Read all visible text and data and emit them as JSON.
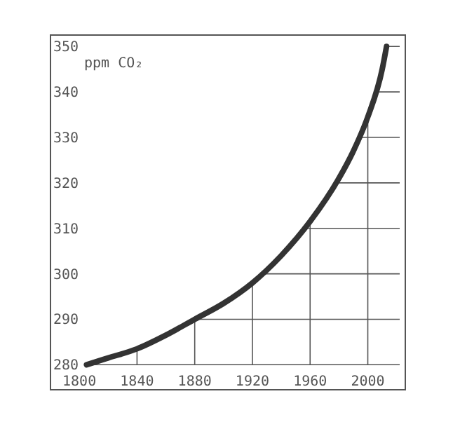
{
  "chart_data": {
    "type": "line",
    "ylabel": "ppm CO₂",
    "xlim": [
      1780,
      2026
    ],
    "ylim": [
      274.5,
      352.5
    ],
    "xticks": [
      1800,
      1840,
      1880,
      1920,
      1960,
      2000
    ],
    "yticks": [
      280,
      290,
      300,
      310,
      320,
      330,
      340,
      350
    ],
    "grid": true,
    "marker": "none",
    "line_style": "solid",
    "series": [
      {
        "color": "#333333",
        "x": [
          1805,
          1820,
          1840,
          1860,
          1880,
          1900,
          1920,
          1940,
          1960,
          1980,
          1990,
          2000,
          2010,
          2013
        ],
        "values": [
          280,
          281.5,
          283.5,
          286.5,
          290,
          293.5,
          298,
          304,
          311.5,
          321,
          327,
          334.5,
          345,
          350
        ]
      }
    ]
  }
}
